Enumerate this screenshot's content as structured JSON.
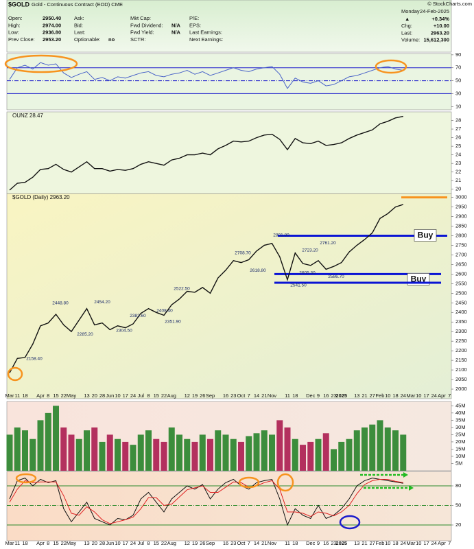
{
  "header": {
    "title": "$GOLD",
    "subtitle": "Gold - Continuous Contract (EOD) CME",
    "copyright": "© StockCharts.com",
    "day": "Monday",
    "date": "24-Feb-2025",
    "change_pct": "+0.34%",
    "fields": [
      [
        {
          "label": "Open:",
          "value": "2950.40"
        },
        {
          "label": "Ask:"
        },
        {
          "label": "Mkt Cap:"
        },
        {
          "label": "P/E:"
        }
      ],
      [
        {
          "label": "High:",
          "value": "2974.00"
        },
        {
          "label": "Bid:"
        },
        {
          "label": "Fwd Dividend:",
          "value": "N/A"
        },
        {
          "label": "EPS:"
        }
      ],
      [
        {
          "label": "Low:",
          "value": "2936.80"
        },
        {
          "label": "Last:"
        },
        {
          "label": "Fwd Yield:",
          "value": "N/A"
        },
        {
          "label": "Last Earnings:"
        }
      ],
      [
        {
          "label": "Prev Close:",
          "value": "2953.20"
        },
        {
          "label": "Optionable:",
          "value": "no"
        },
        {
          "label": "SCTR:"
        },
        {
          "label": "Next Earnings:"
        }
      ]
    ],
    "right": [
      {
        "label": "Chg:",
        "value": "+10.00"
      },
      {
        "label": "Last:",
        "value": "2963.20"
      },
      {
        "label": "Volume:",
        "value": "15,612,300"
      }
    ]
  },
  "chart_data": [
    {
      "type": "line",
      "ylim": [
        5,
        92
      ],
      "yticks": [
        90,
        70,
        50,
        30,
        10
      ],
      "levels": [
        {
          "value": 70,
          "color": "#1a1acc"
        },
        {
          "value": 50,
          "color": "#1a1acc",
          "style": "dashdot"
        },
        {
          "value": 30,
          "color": "#1a1acc"
        }
      ],
      "series": [
        {
          "color": "#4a63c8",
          "values": [
            52,
            70,
            74,
            68,
            78,
            74,
            76,
            62,
            55,
            60,
            64,
            52,
            55,
            50,
            56,
            54,
            58,
            62,
            64,
            58,
            56,
            60,
            62,
            66,
            60,
            64,
            58,
            62,
            66,
            70,
            66,
            64,
            68,
            70,
            72,
            60,
            38,
            54,
            48,
            46,
            50,
            42,
            44,
            50,
            56,
            58,
            62,
            66,
            70,
            72,
            68,
            66,
            null,
            null,
            null,
            null,
            null,
            null
          ]
        }
      ]
    },
    {
      "type": "line",
      "ylim": [
        19.5,
        29
      ],
      "yticks": [
        20,
        21,
        22,
        23,
        24,
        25,
        26,
        27,
        28
      ],
      "series": [
        {
          "name": "OUNZ 28.47",
          "color": "#111111",
          "values": [
            19.9,
            20.7,
            20.8,
            21.4,
            22.3,
            22.4,
            22.9,
            22.3,
            22.0,
            22.6,
            23.2,
            22.4,
            22.4,
            22.1,
            22.3,
            22.2,
            22.4,
            22.9,
            23.2,
            23.0,
            22.8,
            23.4,
            23.6,
            24.0,
            24.0,
            24.2,
            24.0,
            24.7,
            25.1,
            25.6,
            25.5,
            25.6,
            26.0,
            26.3,
            26.4,
            25.8,
            24.6,
            25.9,
            25.4,
            25.3,
            25.6,
            25.1,
            25.2,
            25.4,
            25.9,
            26.3,
            26.6,
            26.9,
            27.6,
            27.9,
            28.3,
            28.47,
            null,
            null,
            null,
            null,
            null,
            null
          ]
        }
      ]
    },
    {
      "type": "line",
      "ylim": [
        1950,
        3020
      ],
      "yticks": [
        2000,
        2050,
        2100,
        2150,
        2200,
        2250,
        2300,
        2350,
        2400,
        2450,
        2500,
        2550,
        2600,
        2650,
        2700,
        2750,
        2800,
        2850,
        2900,
        2950,
        3000
      ],
      "categories": [
        "Mar",
        "11",
        "18",
        null,
        "Apr",
        "8",
        "15",
        "22",
        "May",
        null,
        "13",
        "20",
        "28",
        "Jun",
        "10",
        "17",
        "24",
        "Jul",
        "8",
        "15",
        "22",
        "Aug",
        null,
        "12",
        "19",
        "26",
        "Sep",
        null,
        "16",
        "23",
        "Oct",
        "7",
        "14",
        "21",
        "Nov",
        null,
        "11",
        "18",
        null,
        "Dec",
        "9",
        "16",
        "23",
        "2025",
        null,
        "13",
        "21",
        "27",
        "Feb",
        "10",
        "18",
        "24",
        "Mar",
        "10",
        "17",
        "24",
        "Apr",
        "7"
      ],
      "series": [
        {
          "name": "$GOLD (Daily) 2963.20",
          "color": "#111111",
          "values": [
            2085,
            2160,
            2165,
            2235,
            2330,
            2345,
            2390,
            2335,
            2300,
            2360,
            2420,
            2335,
            2345,
            2310,
            2330,
            2320,
            2340,
            2395,
            2420,
            2400,
            2385,
            2440,
            2470,
            2510,
            2505,
            2530,
            2500,
            2580,
            2620,
            2670,
            2660,
            2675,
            2720,
            2750,
            2760,
            2690,
            2570,
            2710,
            2655,
            2645,
            2670,
            2625,
            2640,
            2660,
            2715,
            2750,
            2780,
            2815,
            2890,
            2915,
            2950,
            2963,
            null,
            null,
            null,
            null,
            null,
            null
          ]
        }
      ],
      "levels": [
        {
          "value": 3000,
          "color": "#f7931e"
        },
        {
          "value": 2800,
          "color": "#0a14d4",
          "label": "Buy"
        },
        {
          "value": 2600,
          "color": "#0a14d4",
          "label": "Buy"
        },
        {
          "value": 2555,
          "color": "#0a14d4"
        }
      ],
      "annotations": [
        {
          "value": 2158.4,
          "label": "2158.40"
        },
        {
          "value": 2448.8,
          "label": "2448.80"
        },
        {
          "value": 2285.2,
          "label": "2285.20"
        },
        {
          "value": 2454.2,
          "label": "2454.20"
        },
        {
          "value": 2304.5,
          "label": "2304.50"
        },
        {
          "value": 2382.6,
          "label": "2382.60"
        },
        {
          "value": 2351.9,
          "label": "2351.90"
        },
        {
          "value": 2408.4,
          "label": "2408.40"
        },
        {
          "value": 2522.5,
          "label": "2522.50"
        },
        {
          "value": 2708.7,
          "label": "2708.70"
        },
        {
          "value": 2618.8,
          "label": "2618.80"
        },
        {
          "value": 2801.8,
          "label": "2801.80"
        },
        {
          "value": 2723.2,
          "label": "2723.20"
        },
        {
          "value": 2761.2,
          "label": "2761.20"
        },
        {
          "value": 2605.3,
          "label": "2605.30"
        },
        {
          "value": 2541.5,
          "label": "2541.50"
        },
        {
          "value": 2586.7,
          "label": "2586.70"
        }
      ]
    },
    {
      "type": "bar",
      "ylim": [
        0,
        48
      ],
      "up_color": "#3c8d3c",
      "down_color": "#b3305e",
      "yticks": [
        {
          "value": 5,
          "label": "5M"
        },
        {
          "value": 10,
          "label": "10M"
        },
        {
          "value": 15,
          "label": "15M"
        },
        {
          "value": 20,
          "label": "20M"
        },
        {
          "value": 25,
          "label": "25M"
        },
        {
          "value": 30,
          "label": "30M"
        },
        {
          "value": 35,
          "label": "35M"
        },
        {
          "value": 40,
          "label": "40M"
        },
        {
          "value": 45,
          "label": "45M"
        }
      ],
      "values": [
        25,
        30,
        28,
        22,
        35,
        40,
        45,
        30,
        25,
        22,
        28,
        30,
        20,
        25,
        22,
        20,
        18,
        25,
        28,
        22,
        20,
        30,
        25,
        22,
        20,
        25,
        22,
        28,
        25,
        22,
        20,
        24,
        26,
        28,
        25,
        35,
        30,
        22,
        18,
        20,
        22,
        26,
        15,
        20,
        22,
        28,
        30,
        32,
        35,
        30,
        28,
        25,
        null,
        null,
        null,
        null,
        null,
        null
      ]
    },
    {
      "type": "line",
      "ylim": [
        0,
        100
      ],
      "yticks": [
        80,
        50,
        20
      ],
      "categories": [
        "Mar",
        "11",
        "18",
        null,
        "Apr",
        "8",
        "15",
        "22",
        "May",
        null,
        "13",
        "20",
        "28",
        "Jun",
        "10",
        "17",
        "24",
        "Jul",
        "8",
        "15",
        "22",
        "Aug",
        null,
        "12",
        "19",
        "26",
        "Sep",
        null,
        "16",
        "23",
        "Oct",
        "7",
        "14",
        "21",
        "Nov",
        null,
        "11",
        "18",
        null,
        "Dec",
        "9",
        "16",
        "23",
        "2025",
        null,
        "13",
        "21",
        "27",
        "Feb",
        "10",
        "18",
        "24",
        "Mar",
        "10",
        "17",
        "24",
        "Apr",
        "7"
      ],
      "levels": [
        {
          "value": 80,
          "color": "#2a8a2a"
        },
        {
          "value": 50,
          "color": "#2a8a2a",
          "style": "dashdot"
        },
        {
          "value": 20,
          "color": "#2a8a2a"
        }
      ],
      "series": [
        {
          "color": "#111111",
          "values": [
            60,
            88,
            92,
            80,
            90,
            85,
            88,
            45,
            25,
            40,
            55,
            30,
            25,
            20,
            30,
            28,
            35,
            60,
            70,
            55,
            40,
            60,
            70,
            80,
            75,
            82,
            60,
            75,
            85,
            90,
            80,
            75,
            85,
            88,
            90,
            60,
            20,
            45,
            35,
            30,
            50,
            30,
            35,
            45,
            60,
            80,
            88,
            92,
            90,
            88,
            86,
            84,
            null,
            null,
            null,
            null,
            null,
            null
          ]
        },
        {
          "color": "#e02020",
          "values": [
            55,
            75,
            88,
            85,
            86,
            86,
            86,
            65,
            38,
            35,
            48,
            40,
            28,
            22,
            25,
            28,
            32,
            45,
            62,
            62,
            50,
            52,
            63,
            74,
            77,
            80,
            70,
            70,
            78,
            86,
            85,
            78,
            80,
            85,
            88,
            75,
            40,
            40,
            38,
            33,
            40,
            38,
            34,
            40,
            50,
            68,
            82,
            88,
            90,
            90,
            87,
            85,
            null,
            null,
            null,
            null,
            null,
            null
          ]
        }
      ]
    }
  ]
}
